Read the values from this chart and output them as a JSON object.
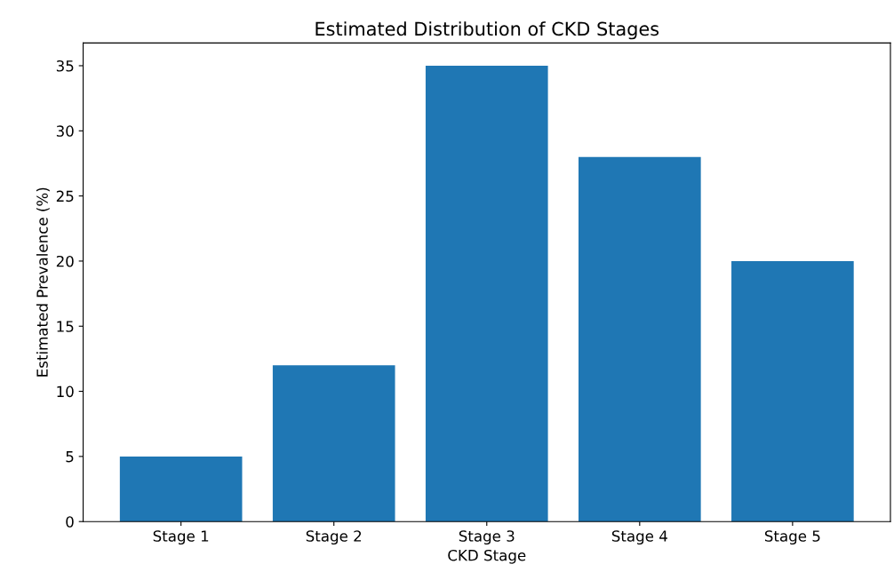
{
  "chart_data": {
    "type": "bar",
    "title": "Estimated Distribution of CKD Stages",
    "xlabel": "CKD Stage",
    "ylabel": "Estimated Prevalence (%)",
    "categories": [
      "Stage 1",
      "Stage 2",
      "Stage 3",
      "Stage 4",
      "Stage 5"
    ],
    "values": [
      5,
      12,
      35,
      28,
      20
    ],
    "color": "#1f77b4",
    "ylim": [
      0,
      36.75
    ],
    "yticks": [
      0,
      5,
      10,
      15,
      20,
      25,
      30,
      35
    ],
    "grid": false
  }
}
